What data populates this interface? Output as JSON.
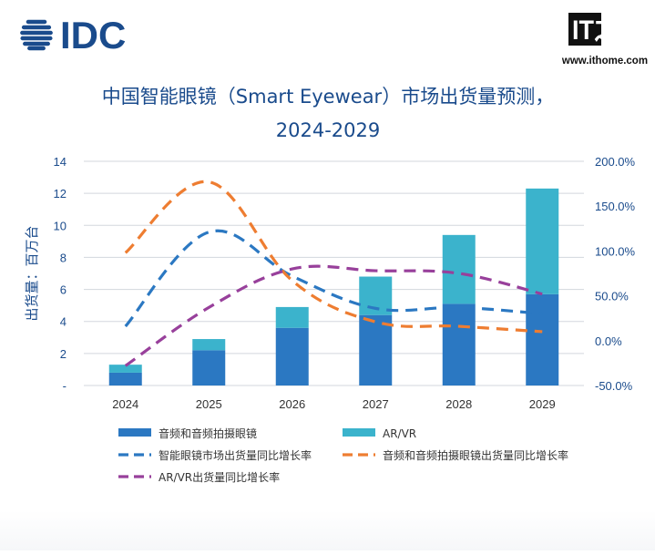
{
  "brand": {
    "idc_logo": "IDC",
    "ithome_logo": "IT之家",
    "ithome_url": "www.ithome.com"
  },
  "colors": {
    "bar_audio": "#2b78c2",
    "bar_arvr": "#3bb3cc",
    "line_total": "#2b78c2",
    "line_audio": "#ee7d31",
    "line_arvr": "#98409b",
    "title": "#1a4b8c",
    "axis_text": "#1a4b8c",
    "grid": "#d3d7dd",
    "idc_blue": "#1a4b8c"
  },
  "chart_data": {
    "type": "bar",
    "title": "中国智能眼镜（Smart Eyewear）市场出货量预测，",
    "subtitle": "2024-2029",
    "ylabel": "出货量：百万台",
    "categories": [
      "2024",
      "2025",
      "2026",
      "2027",
      "2028",
      "2029"
    ],
    "y_left": {
      "min": 0,
      "max": 14,
      "ticks": [
        "-",
        "2",
        "4",
        "6",
        "8",
        "10",
        "12",
        "14"
      ]
    },
    "y_right": {
      "min": -50,
      "max": 200,
      "ticks": [
        "-50.0%",
        "0.0%",
        "50.0%",
        "100.0%",
        "150.0%",
        "200.0%"
      ]
    },
    "grid": true,
    "bar_series": [
      {
        "name": "音频和音频拍摄眼镜",
        "values": [
          0.8,
          2.2,
          3.6,
          4.4,
          5.1,
          5.7
        ],
        "stacked": true
      },
      {
        "name": "AR/VR",
        "values": [
          0.5,
          0.7,
          1.3,
          2.4,
          4.3,
          6.6
        ],
        "stacked": true
      }
    ],
    "line_series": [
      {
        "name": "智能眼镜市场出货量同比增长率",
        "axis": "right",
        "dash": true,
        "values": [
          16,
          121,
          72,
          36,
          37,
          30
        ]
      },
      {
        "name": "音频和音频拍摄眼镜出货量同比增长率",
        "axis": "right",
        "dash": true,
        "values": [
          98,
          177,
          67,
          21,
          16,
          10
        ]
      },
      {
        "name": "AR/VR出货量同比增长率",
        "axis": "right",
        "dash": true,
        "values": [
          -28,
          37,
          80,
          78,
          75,
          52
        ]
      }
    ],
    "legend_placement": "bottom"
  }
}
